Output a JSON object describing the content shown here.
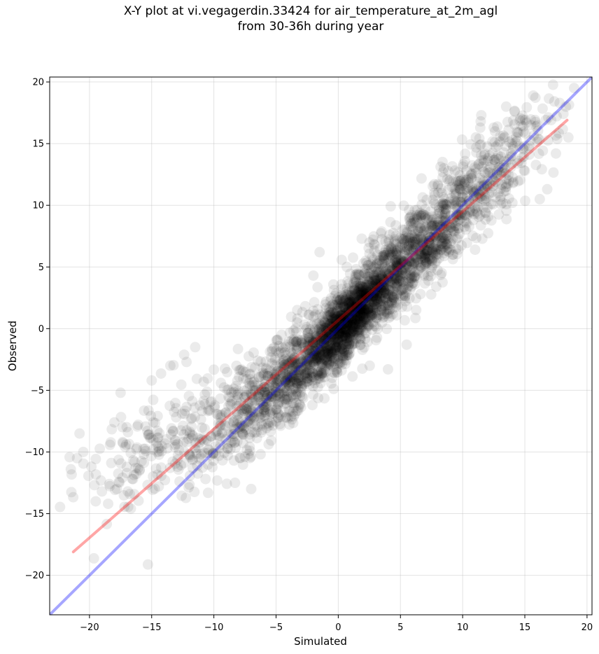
{
  "chart_data": {
    "type": "scatter",
    "title_line1": "X-Y plot at vi.vegagerdin.33424 for air_temperature_at_2m_agl",
    "title_line2": "from 30-36h during year",
    "xlabel": "Simulated",
    "ylabel": "Observed",
    "xlim": [
      -23.2,
      20.4
    ],
    "ylim": [
      -23.2,
      20.4
    ],
    "xticks": [
      -20,
      -15,
      -10,
      -5,
      0,
      5,
      10,
      15,
      20
    ],
    "yticks": [
      -20,
      -15,
      -10,
      -5,
      0,
      5,
      10,
      15,
      20
    ],
    "xtick_labels": [
      "−20",
      "−15",
      "−10",
      "−5",
      "0",
      "5",
      "10",
      "15",
      "20"
    ],
    "ytick_labels": [
      "−20",
      "−15",
      "−10",
      "−5",
      "0",
      "5",
      "10",
      "15",
      "20"
    ],
    "grid": true,
    "point_color": "#000000",
    "point_alpha": 0.08,
    "lines": [
      {
        "role": "identity",
        "color": "#0000ff",
        "alpha": 0.35,
        "x": [
          -23.2,
          20.4
        ],
        "y": [
          -23.2,
          20.4
        ]
      },
      {
        "role": "regression",
        "color": "#ff0000",
        "alpha": 0.35,
        "x": [
          -21.3,
          18.4
        ],
        "y": [
          -18.1,
          16.9
        ]
      }
    ],
    "point_clusters": [
      {
        "cx": 3.5,
        "cy": 3.5,
        "sx": 4.8,
        "noise": 1.7,
        "n": 1500,
        "slope": 0.95
      },
      {
        "cx": 0.5,
        "cy": 0.2,
        "sx": 1.8,
        "noise": 1.3,
        "n": 700,
        "slope": 1.0
      },
      {
        "cx": -5.0,
        "cy": -4.8,
        "sx": 3.0,
        "noise": 1.8,
        "n": 450,
        "slope": 0.85
      },
      {
        "cx": -13.0,
        "cy": -8.5,
        "sx": 4.0,
        "noise": 2.2,
        "n": 260,
        "slope": 0.55
      },
      {
        "cx": 10.5,
        "cy": 11.2,
        "sx": 3.2,
        "noise": 2.0,
        "n": 320,
        "slope": 0.85
      }
    ],
    "sample_points": [
      {
        "x": -21.5,
        "y": -11.4
      },
      {
        "x": -21.0,
        "y": -10.5
      },
      {
        "x": -20.8,
        "y": -8.5
      },
      {
        "x": -20.5,
        "y": -10.0
      },
      {
        "x": -19.5,
        "y": -14.0
      },
      {
        "x": -18.5,
        "y": -14.2
      },
      {
        "x": -18.0,
        "y": -7.6
      },
      {
        "x": -17.8,
        "y": -13.0
      },
      {
        "x": -17.5,
        "y": -5.2
      },
      {
        "x": -16.5,
        "y": -12.2
      },
      {
        "x": -15.0,
        "y": -4.2
      },
      {
        "x": -13.5,
        "y": -3.0
      },
      {
        "x": -12.2,
        "y": -2.7
      },
      {
        "x": -11.5,
        "y": -1.5
      },
      {
        "x": -8.3,
        "y": -12.5
      },
      {
        "x": -7.0,
        "y": -13.0
      },
      {
        "x": -3.3,
        "y": 1.5
      },
      {
        "x": -2.0,
        "y": 4.3
      },
      {
        "x": -1.5,
        "y": 6.2
      },
      {
        "x": 4.0,
        "y": -3.3
      },
      {
        "x": 5.5,
        "y": -1.3
      },
      {
        "x": 8.5,
        "y": 13.0
      },
      {
        "x": 11.0,
        "y": 6.4
      },
      {
        "x": 11.5,
        "y": 17.3
      },
      {
        "x": 12.5,
        "y": 16.3
      },
      {
        "x": 13.5,
        "y": 18.0
      },
      {
        "x": 14.0,
        "y": 14.0
      },
      {
        "x": 14.0,
        "y": 10.2
      },
      {
        "x": 15.0,
        "y": 12.8
      },
      {
        "x": 15.5,
        "y": 16.5
      },
      {
        "x": 16.2,
        "y": 10.5
      },
      {
        "x": 16.8,
        "y": 11.3
      },
      {
        "x": 17.5,
        "y": 14.2
      },
      {
        "x": 17.8,
        "y": 18.3
      },
      {
        "x": 18.3,
        "y": 18.0
      },
      {
        "x": 18.5,
        "y": 15.5
      }
    ]
  }
}
